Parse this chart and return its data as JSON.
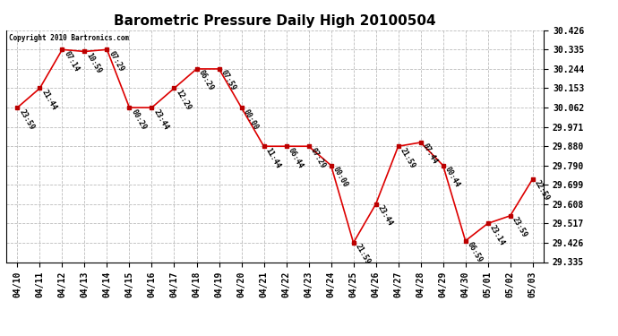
{
  "title": "Barometric Pressure Daily High 20100504",
  "copyright": "Copyright 2010 Bartronics.com",
  "dates": [
    "04/10",
    "04/11",
    "04/12",
    "04/13",
    "04/14",
    "04/15",
    "04/16",
    "04/17",
    "04/18",
    "04/19",
    "04/20",
    "04/21",
    "04/22",
    "04/23",
    "04/24",
    "04/25",
    "04/26",
    "04/27",
    "04/28",
    "04/29",
    "04/30",
    "05/01",
    "05/02",
    "05/03"
  ],
  "values": [
    30.062,
    30.153,
    30.335,
    30.326,
    30.335,
    30.062,
    30.062,
    30.153,
    30.244,
    30.244,
    30.062,
    29.88,
    29.88,
    29.88,
    29.79,
    29.426,
    29.608,
    29.88,
    29.898,
    29.79,
    29.435,
    29.517,
    29.553,
    29.726
  ],
  "labels": [
    "23:59",
    "21:44",
    "07:14",
    "10:59",
    "07:29",
    "00:29",
    "23:44",
    "12:29",
    "06:29",
    "07:59",
    "00:00",
    "11:44",
    "06:44",
    "07:29",
    "00:00",
    "21:59",
    "23:44",
    "21:59",
    "07:44",
    "00:44",
    "06:59",
    "23:14",
    "23:59",
    "22:59"
  ],
  "yticks": [
    29.335,
    29.426,
    29.517,
    29.608,
    29.699,
    29.79,
    29.88,
    29.971,
    30.062,
    30.153,
    30.244,
    30.335,
    30.426
  ],
  "ymin": 29.335,
  "ymax": 30.426,
  "line_color": "#dd0000",
  "marker_color": "#bb0000",
  "bg_color": "#ffffff",
  "grid_color": "#bbbbbb",
  "title_fontsize": 11,
  "label_fontsize": 6,
  "tick_fontsize": 7,
  "xtick_fontsize": 7
}
